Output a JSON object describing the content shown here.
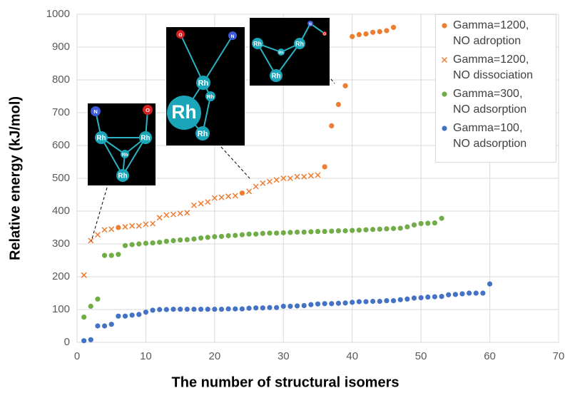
{
  "chart_data": {
    "type": "scatter",
    "x_label": "The number of structural isomers",
    "y_label": "Relative energy (kJ/mol)",
    "xlim": [
      0,
      70
    ],
    "xticks": [
      0,
      10,
      20,
      30,
      40,
      50,
      60,
      70
    ],
    "ylim": [
      0,
      1000
    ],
    "yticks": [
      0,
      100,
      200,
      300,
      400,
      500,
      600,
      700,
      800,
      900,
      1000
    ],
    "grid": true,
    "legend": "upper right",
    "series": [
      {
        "name": "Gamma=1200,\nNO adroption",
        "color": "#ED7D31",
        "marker": "circle",
        "x": [
          6,
          24,
          36,
          37,
          38,
          39,
          40,
          41,
          42,
          43,
          44,
          45,
          46
        ],
        "values": [
          350,
          455,
          535,
          660,
          725,
          782,
          932,
          938,
          940,
          945,
          947,
          950,
          960
        ]
      },
      {
        "name": "Gamma=1200,\nNO dissociation",
        "color": "#ED7D31",
        "marker": "x",
        "x": [
          1,
          2,
          3,
          4,
          5,
          7,
          8,
          9,
          10,
          11,
          12,
          13,
          14,
          15,
          16,
          17,
          18,
          19,
          20,
          21,
          22,
          23,
          25,
          26,
          27,
          28,
          29,
          30,
          31,
          32,
          33,
          34,
          35
        ],
        "values": [
          205,
          310,
          328,
          343,
          345,
          352,
          355,
          355,
          360,
          362,
          380,
          388,
          390,
          393,
          395,
          418,
          423,
          428,
          440,
          442,
          445,
          447,
          460,
          475,
          485,
          490,
          495,
          500,
          500,
          505,
          505,
          508,
          510
        ]
      },
      {
        "name": "Gamma=300,\nNO adsorption",
        "color": "#70AD47",
        "marker": "circle",
        "x": [
          1,
          2,
          3,
          4,
          5,
          6,
          7,
          8,
          9,
          10,
          11,
          12,
          13,
          14,
          15,
          16,
          17,
          18,
          19,
          20,
          21,
          22,
          23,
          24,
          25,
          26,
          27,
          28,
          29,
          30,
          31,
          32,
          33,
          34,
          35,
          36,
          37,
          38,
          39,
          40,
          41,
          42,
          43,
          44,
          45,
          46,
          47,
          48,
          49,
          50,
          51,
          52,
          53
        ],
        "values": [
          77,
          110,
          132,
          265,
          265,
          268,
          295,
          298,
          300,
          302,
          303,
          305,
          308,
          310,
          312,
          313,
          315,
          318,
          320,
          322,
          323,
          325,
          326,
          328,
          330,
          330,
          332,
          333,
          333,
          334,
          335,
          336,
          336,
          337,
          338,
          338,
          339,
          340,
          340,
          341,
          342,
          343,
          344,
          345,
          346,
          347,
          348,
          352,
          358,
          362,
          363,
          364,
          378
        ]
      },
      {
        "name": "Gamma=100,\nNO adsorption",
        "color": "#4472C4",
        "marker": "circle",
        "x": [
          1,
          2,
          3,
          4,
          5,
          6,
          7,
          8,
          9,
          10,
          11,
          12,
          13,
          14,
          15,
          16,
          17,
          18,
          19,
          20,
          21,
          22,
          23,
          24,
          25,
          26,
          27,
          28,
          29,
          30,
          31,
          32,
          33,
          34,
          35,
          36,
          37,
          38,
          39,
          40,
          41,
          42,
          43,
          44,
          45,
          46,
          47,
          48,
          49,
          50,
          51,
          52,
          53,
          54,
          55,
          56,
          57,
          58,
          59,
          60
        ],
        "values": [
          5,
          8,
          50,
          50,
          55,
          80,
          80,
          83,
          85,
          92,
          98,
          100,
          100,
          101,
          101,
          101,
          101,
          101,
          101,
          101,
          101,
          102,
          102,
          102,
          104,
          105,
          105,
          106,
          106,
          110,
          110,
          111,
          112,
          115,
          117,
          118,
          118,
          119,
          120,
          122,
          124,
          124,
          125,
          125,
          127,
          127,
          130,
          132,
          135,
          136,
          138,
          139,
          140,
          145,
          146,
          148,
          150,
          150,
          150,
          178
        ]
      }
    ],
    "insets": [
      {
        "atoms": [
          "N",
          "O",
          "Rh",
          "Rh",
          "Rh",
          "Rh"
        ]
      },
      {
        "atoms": [
          "O",
          "N",
          "Rh",
          "Rh",
          "Rh",
          "Rh"
        ]
      },
      {
        "atoms": [
          "N",
          "O",
          "Rh",
          "Rh",
          "Rh",
          "Rh"
        ]
      }
    ]
  }
}
